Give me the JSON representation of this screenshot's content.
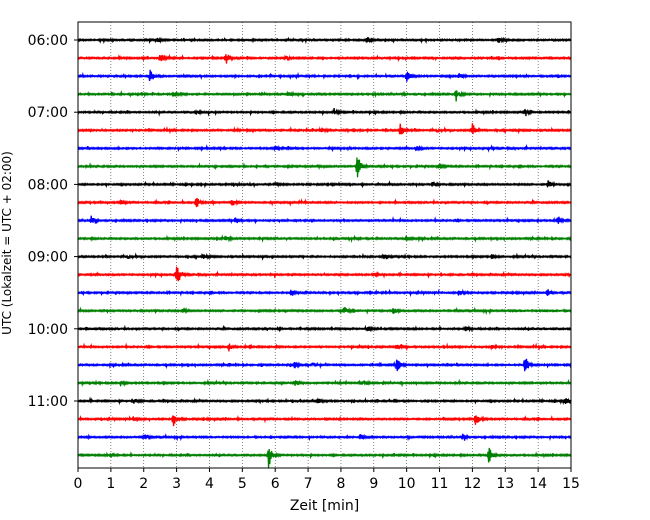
{
  "chart_data": {
    "type": "line",
    "title": "",
    "xlabel": "Zeit  [min]",
    "ylabel": "UTC (Lokalzeit = UTC + 02:00)",
    "xlim": [
      0,
      15
    ],
    "x_ticks": [
      "0",
      "1",
      "2",
      "3",
      "4",
      "5",
      "6",
      "7",
      "8",
      "9",
      "10",
      "11",
      "12",
      "13",
      "14",
      "15"
    ],
    "y_tick_labels": [
      "06:00",
      "07:00",
      "08:00",
      "09:00",
      "10:00",
      "11:00"
    ],
    "grid": "vertical dotted",
    "trace_colors": [
      "#000000",
      "#ff0000",
      "#0000ff",
      "#008000"
    ],
    "traces": [
      {
        "start": "06:00",
        "color": "#000000",
        "events": [
          [
            2.4,
            0.4
          ],
          [
            8.8,
            0.35
          ],
          [
            12.8,
            0.4
          ]
        ]
      },
      {
        "start": "06:15",
        "color": "#ff0000",
        "events": [
          [
            2.5,
            0.5
          ],
          [
            4.5,
            0.8
          ],
          [
            6.3,
            0.3
          ]
        ]
      },
      {
        "start": "06:30",
        "color": "#0000ff",
        "events": [
          [
            2.2,
            1.0
          ],
          [
            10.0,
            0.9
          ],
          [
            11.6,
            0.4
          ]
        ]
      },
      {
        "start": "06:45",
        "color": "#008000",
        "events": [
          [
            2.9,
            0.3
          ],
          [
            6.4,
            0.3
          ],
          [
            11.5,
            0.7
          ]
        ]
      },
      {
        "start": "07:00",
        "color": "#000000",
        "events": [
          [
            3.6,
            0.3
          ],
          [
            7.8,
            0.3
          ],
          [
            13.6,
            0.3
          ]
        ]
      },
      {
        "start": "07:15",
        "color": "#ff0000",
        "events": [
          [
            9.8,
            0.9
          ],
          [
            12.0,
            1.0
          ],
          [
            7.4,
            0.4
          ]
        ]
      },
      {
        "start": "07:30",
        "color": "#0000ff",
        "events": [
          [
            6.0,
            0.3
          ],
          [
            10.3,
            0.3
          ]
        ]
      },
      {
        "start": "07:45",
        "color": "#008000",
        "events": [
          [
            8.5,
            1.6
          ],
          [
            11.0,
            0.3
          ]
        ]
      },
      {
        "start": "08:00",
        "color": "#000000",
        "events": [
          [
            6.0,
            0.3
          ],
          [
            10.8,
            0.4
          ],
          [
            14.3,
            0.6
          ]
        ]
      },
      {
        "start": "08:15",
        "color": "#ff0000",
        "events": [
          [
            3.6,
            0.7
          ],
          [
            4.7,
            0.4
          ],
          [
            1.3,
            0.3
          ]
        ]
      },
      {
        "start": "08:30",
        "color": "#0000ff",
        "events": [
          [
            0.4,
            0.6
          ],
          [
            4.8,
            0.4
          ],
          [
            14.6,
            0.4
          ]
        ]
      },
      {
        "start": "08:45",
        "color": "#008000",
        "events": [
          [
            4.5,
            0.4
          ],
          [
            10.0,
            0.4
          ]
        ]
      },
      {
        "start": "09:00",
        "color": "#000000",
        "events": [
          [
            3.8,
            0.3
          ],
          [
            9.3,
            0.3
          ],
          [
            12.6,
            0.3
          ]
        ]
      },
      {
        "start": "09:15",
        "color": "#ff0000",
        "events": [
          [
            3.0,
            1.5
          ],
          [
            9.0,
            0.3
          ]
        ]
      },
      {
        "start": "09:30",
        "color": "#0000ff",
        "events": [
          [
            6.5,
            0.5
          ],
          [
            11.6,
            0.5
          ],
          [
            14.3,
            0.4
          ]
        ]
      },
      {
        "start": "09:45",
        "color": "#008000",
        "events": [
          [
            3.2,
            0.3
          ],
          [
            8.1,
            0.5
          ],
          [
            9.6,
            0.4
          ]
        ]
      },
      {
        "start": "10:00",
        "color": "#000000",
        "events": [
          [
            8.8,
            0.4
          ],
          [
            11.8,
            0.3
          ]
        ]
      },
      {
        "start": "10:15",
        "color": "#ff0000",
        "events": [
          [
            4.6,
            0.4
          ],
          [
            9.7,
            0.3
          ],
          [
            12.6,
            0.3
          ]
        ]
      },
      {
        "start": "10:30",
        "color": "#0000ff",
        "events": [
          [
            9.7,
            1.0
          ],
          [
            13.6,
            1.2
          ],
          [
            6.6,
            0.4
          ]
        ]
      },
      {
        "start": "10:45",
        "color": "#008000",
        "events": [
          [
            1.3,
            0.4
          ],
          [
            6.6,
            0.4
          ],
          [
            8.6,
            0.3
          ]
        ]
      },
      {
        "start": "11:00",
        "color": "#000000",
        "events": [
          [
            1.7,
            0.4
          ],
          [
            7.3,
            0.4
          ],
          [
            14.8,
            0.5
          ]
        ]
      },
      {
        "start": "11:15",
        "color": "#ff0000",
        "events": [
          [
            2.9,
            0.9
          ],
          [
            12.1,
            1.0
          ],
          [
            1.7,
            0.4
          ]
        ]
      },
      {
        "start": "11:30",
        "color": "#0000ff",
        "events": [
          [
            2.0,
            0.4
          ],
          [
            8.6,
            0.3
          ],
          [
            11.7,
            0.4
          ]
        ]
      },
      {
        "start": "11:45",
        "color": "#008000",
        "events": [
          [
            5.8,
            1.6
          ],
          [
            12.5,
            1.2
          ],
          [
            1.0,
            0.3
          ]
        ]
      }
    ]
  }
}
